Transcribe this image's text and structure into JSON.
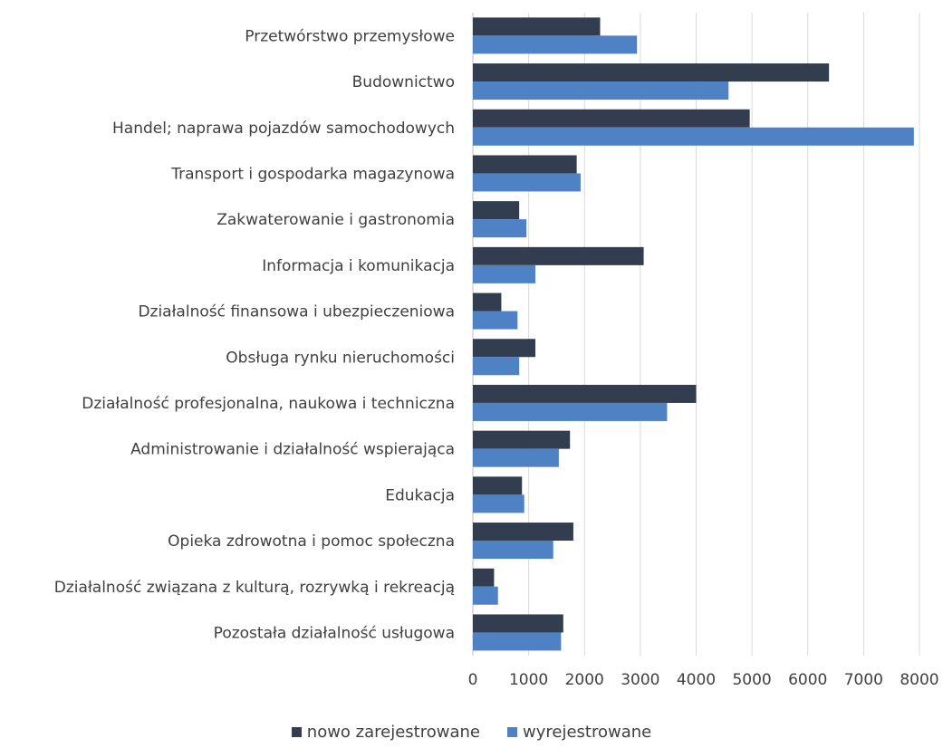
{
  "chart_data": {
    "type": "bar",
    "orientation": "horizontal",
    "categories": [
      "Przetwórstwo przemysłowe",
      "Budownictwo",
      "Handel; naprawa pojazdów samochodowych",
      "Transport i gospodarka magazynowa",
      "Zakwaterowanie i gastronomia",
      "Informacja i komunikacja",
      "Działalność finansowa i ubezpieczeniowa",
      "Obsługa rynku nieruchomości",
      "Działalność profesjonalna, naukowa i techniczna",
      "Administrowanie i działalność wspierająca",
      "Edukacja",
      "Opieka zdrowotna i pomoc społeczna",
      "Działalność związana z kulturą, rozrywką i rekreacją",
      "Pozostała działalność usługowa"
    ],
    "series": [
      {
        "name": "nowo zarejestrowane",
        "color": "#323e50",
        "values": [
          2280,
          6380,
          4960,
          1860,
          830,
          3060,
          510,
          1120,
          4000,
          1740,
          880,
          1800,
          380,
          1620
        ]
      },
      {
        "name": "wyrejestrowane",
        "color": "#4f81c5",
        "values": [
          2940,
          4580,
          7900,
          1930,
          960,
          1120,
          800,
          830,
          3480,
          1540,
          920,
          1440,
          450,
          1580
        ]
      }
    ],
    "xticks": [
      0,
      1000,
      2000,
      3000,
      4000,
      5000,
      6000,
      7000,
      8000
    ],
    "xlim": [
      0,
      8000
    ],
    "grid": true,
    "legend_position": "bottom"
  }
}
